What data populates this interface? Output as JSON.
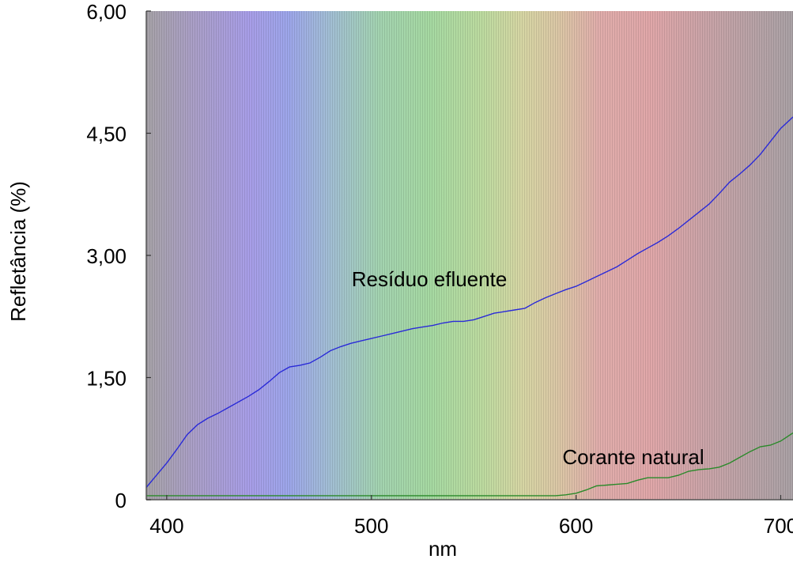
{
  "chart_data": {
    "type": "line",
    "title": "",
    "xlabel": "nm",
    "ylabel": "Refletância (%)",
    "xlim": [
      390,
      706
    ],
    "ylim": [
      0,
      6.0
    ],
    "x_ticks": [
      400,
      500,
      600,
      700
    ],
    "x_tick_labels": [
      "400",
      "500",
      "600",
      "700"
    ],
    "y_ticks": [
      0,
      1.5,
      3.0,
      4.5,
      6.0
    ],
    "y_tick_labels": [
      "0",
      "1,50",
      "3,00",
      "4,50",
      "6,00"
    ],
    "grid": false,
    "background": "visible spectrum gradient",
    "legend": "none",
    "annotations": [
      {
        "text": "Resíduo efluente",
        "series": "Resíduo efluente"
      },
      {
        "text": "Corante natural",
        "series": "Corante natural"
      }
    ],
    "series": [
      {
        "name": "Resíduo efluente",
        "color": "#2a2ad8",
        "x": [
          390,
          395,
          400,
          405,
          410,
          415,
          420,
          425,
          430,
          435,
          440,
          445,
          450,
          455,
          460,
          465,
          470,
          475,
          480,
          485,
          490,
          495,
          500,
          505,
          510,
          515,
          520,
          525,
          530,
          535,
          540,
          545,
          550,
          555,
          560,
          565,
          570,
          575,
          580,
          585,
          590,
          595,
          600,
          605,
          610,
          615,
          620,
          625,
          630,
          635,
          640,
          645,
          650,
          655,
          660,
          665,
          670,
          675,
          680,
          685,
          690,
          695,
          700,
          706
        ],
        "y": [
          0.15,
          0.3,
          0.45,
          0.62,
          0.8,
          0.92,
          1.0,
          1.06,
          1.13,
          1.2,
          1.27,
          1.35,
          1.45,
          1.56,
          1.63,
          1.65,
          1.68,
          1.75,
          1.83,
          1.88,
          1.92,
          1.95,
          1.98,
          2.01,
          2.04,
          2.07,
          2.1,
          2.12,
          2.14,
          2.17,
          2.19,
          2.19,
          2.21,
          2.25,
          2.29,
          2.31,
          2.33,
          2.35,
          2.42,
          2.48,
          2.53,
          2.58,
          2.62,
          2.68,
          2.74,
          2.8,
          2.86,
          2.94,
          3.02,
          3.09,
          3.16,
          3.24,
          3.33,
          3.43,
          3.53,
          3.63,
          3.76,
          3.9,
          4.0,
          4.11,
          4.24,
          4.4,
          4.56,
          4.7
        ]
      },
      {
        "name": "Corante natural",
        "color": "#2a8a2a",
        "x": [
          390,
          450,
          500,
          550,
          590,
          595,
          600,
          605,
          610,
          615,
          620,
          625,
          630,
          635,
          640,
          645,
          650,
          655,
          660,
          665,
          670,
          675,
          680,
          685,
          690,
          695,
          700,
          706
        ],
        "y": [
          0.05,
          0.05,
          0.05,
          0.05,
          0.05,
          0.06,
          0.08,
          0.12,
          0.17,
          0.18,
          0.19,
          0.2,
          0.24,
          0.27,
          0.27,
          0.27,
          0.3,
          0.35,
          0.37,
          0.38,
          0.4,
          0.45,
          0.52,
          0.59,
          0.65,
          0.67,
          0.72,
          0.82
        ]
      }
    ]
  }
}
